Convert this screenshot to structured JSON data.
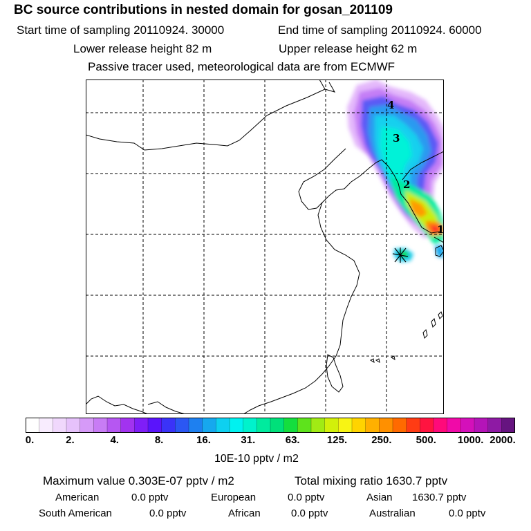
{
  "header": {
    "title": "BC  source contributions in nested domain for gosan_201109",
    "start_label": "Start time of sampling 20110924. 30000",
    "end_label": "End time of sampling 20110924. 60000",
    "lower_label": "Lower release height   82 m",
    "upper_label": "Upper release height   62 m",
    "tracer_label": "Passive tracer used, meteorological data are from ECMWF"
  },
  "map": {
    "trajectory_markers": [
      "1",
      "2",
      "3",
      "4"
    ],
    "receptor_symbol": "receptor-star"
  },
  "colorbar": {
    "colors": [
      "#ffffff",
      "#f8ecfe",
      "#f0d8fc",
      "#e6c2fb",
      "#d69af8",
      "#c87cf5",
      "#b657f2",
      "#a233ef",
      "#7f1ef7",
      "#5a14fb",
      "#3a33f8",
      "#2b57f3",
      "#1e80f0",
      "#16a8ee",
      "#0ed0f0",
      "#00f2f0",
      "#00f2cc",
      "#00eb9e",
      "#00e07a",
      "#14de3e",
      "#5ee31c",
      "#a1eb14",
      "#d2f00a",
      "#f8f414",
      "#ffd400",
      "#ffb000",
      "#ff9000",
      "#ff6a00",
      "#ff3c14",
      "#ff1440",
      "#ff0a7a",
      "#f00aa8",
      "#d410ba",
      "#b414b8",
      "#8e1aa4",
      "#661480"
    ],
    "tick_labels": [
      "0.",
      "2.",
      "4.",
      "8.",
      "16.",
      "31.",
      "63.",
      "125.",
      "250.",
      "500.",
      "1000.",
      "2000."
    ],
    "unit_label": "10E-10 pptv / m2"
  },
  "stats": {
    "max_label": "Maximum value  0.303E-07 pptv / m2",
    "total_label": "Total mixing ratio     1630.7 pptv",
    "regions": [
      {
        "name": "American",
        "value": "0.0 pptv"
      },
      {
        "name": "European",
        "value": "0.0 pptv"
      },
      {
        "name": "Asian",
        "value": "1630.7 pptv"
      },
      {
        "name": "South American",
        "value": "0.0 pptv"
      },
      {
        "name": "African",
        "value": "0.0 pptv"
      },
      {
        "name": "Australian",
        "value": "0.0 pptv"
      }
    ]
  }
}
